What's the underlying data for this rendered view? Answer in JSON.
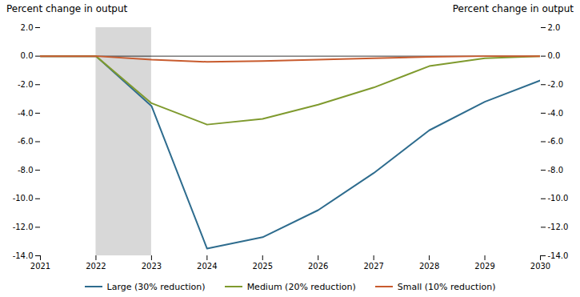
{
  "chart_data": {
    "type": "line",
    "ylabel": "Percent change in output",
    "y2label": "Percent change in output",
    "x": [
      2021,
      2022,
      2023,
      2024,
      2025,
      2026,
      2027,
      2028,
      2029,
      2030
    ],
    "series": [
      {
        "name": "Large (30% reduction)",
        "color": "#2e6c8e",
        "values": [
          0.0,
          0.0,
          -3.5,
          -13.5,
          -12.7,
          -10.8,
          -8.2,
          -5.2,
          -3.2,
          -1.7
        ]
      },
      {
        "name": "Medium (20% reduction)",
        "color": "#7f9a2e",
        "values": [
          0.0,
          0.0,
          -3.3,
          -4.8,
          -4.4,
          -3.4,
          -2.2,
          -0.7,
          -0.15,
          0.0
        ]
      },
      {
        "name": "Small (10% reduction)",
        "color": "#c85b2e",
        "values": [
          0.0,
          0.0,
          -0.25,
          -0.4,
          -0.35,
          -0.25,
          -0.15,
          -0.05,
          0.0,
          0.0
        ]
      }
    ],
    "shade": {
      "x": [
        2022,
        2023
      ],
      "color": "#d8d8d8"
    },
    "hline": 0,
    "xlim": [
      2021,
      2030
    ],
    "xticks": [
      2021,
      2022,
      2023,
      2024,
      2025,
      2026,
      2027,
      2028,
      2029,
      2030
    ],
    "ylim": [
      -14.0,
      2.0
    ],
    "yticks": [
      {
        "value": 2.0,
        "label": "2.0"
      },
      {
        "value": 0.0,
        "label": "0.0"
      },
      {
        "value": -2.0,
        "label": "-2.0"
      },
      {
        "value": -4.0,
        "label": "-4.0"
      },
      {
        "value": -6.0,
        "label": "-6.0"
      },
      {
        "value": -8.0,
        "label": "-8.0"
      },
      {
        "value": -10.0,
        "label": "-10.0"
      },
      {
        "value": -12.0,
        "label": "-12.0"
      },
      {
        "value": -14.0,
        "label": "-14.0"
      }
    ],
    "y2lim": [
      -14.0,
      2.0
    ],
    "y2ticks": [
      {
        "value": 2.0,
        "label": "2.0"
      },
      {
        "value": 0.0,
        "label": "0.0"
      },
      {
        "value": -2.0,
        "label": "-2.0"
      },
      {
        "value": -4.0,
        "label": "-4.0"
      },
      {
        "value": -6.0,
        "label": "-6.0"
      },
      {
        "value": -8.0,
        "label": "-8.0"
      },
      {
        "value": -10.0,
        "label": "-10.0"
      },
      {
        "value": -12.0,
        "label": "-12.0"
      },
      {
        "value": -14.0,
        "label": "-14.0"
      }
    ],
    "grid": false,
    "legend": "bottom"
  }
}
